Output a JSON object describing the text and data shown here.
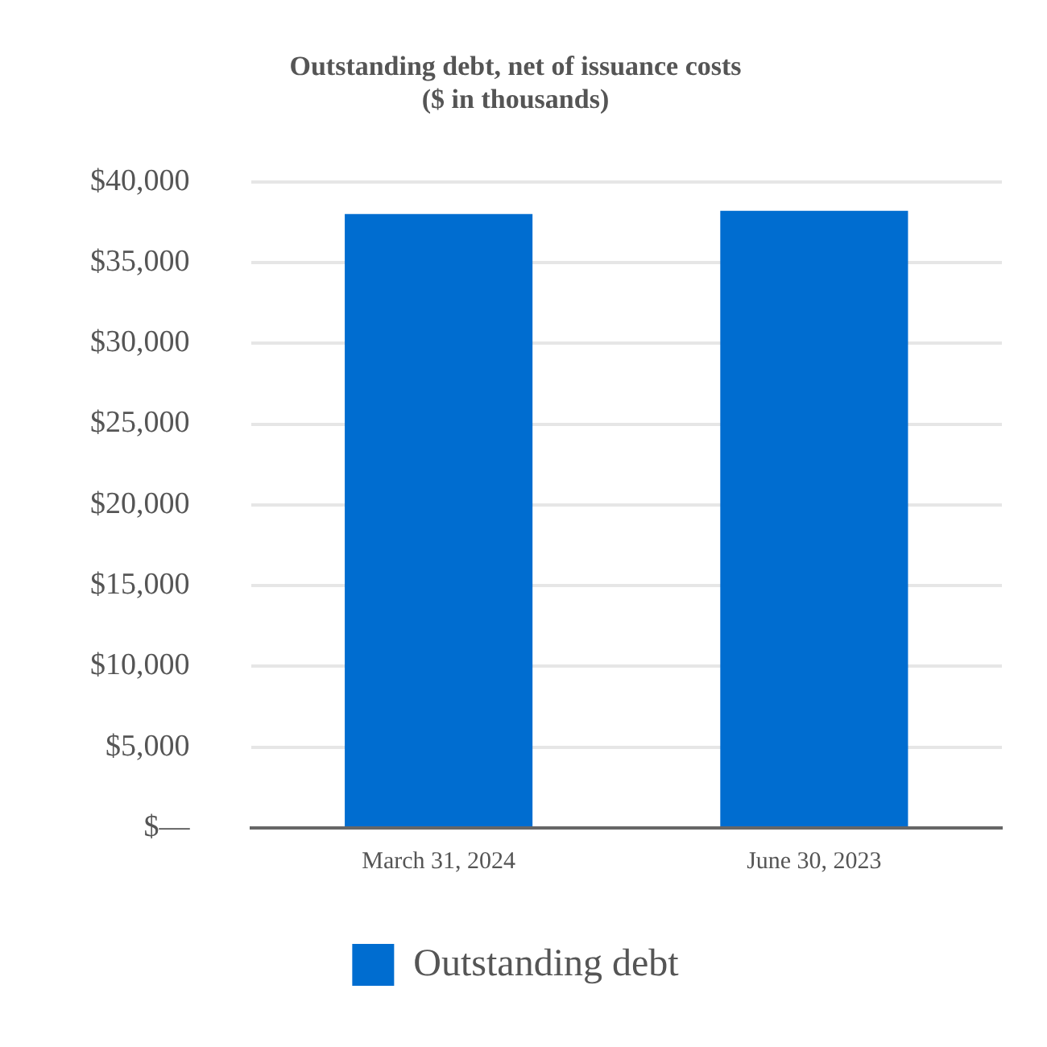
{
  "chart_data": {
    "type": "bar",
    "title": "Outstanding debt, net of issuance costs\n($ in thousands)",
    "categories": [
      "March 31, 2024",
      "June 30, 2023"
    ],
    "series": [
      {
        "name": "Outstanding debt",
        "color": "#006dd0",
        "values": [
          38000,
          38200
        ]
      }
    ],
    "ylim": [
      0,
      40000
    ],
    "yticks": [
      {
        "value": 0,
        "label": "$—"
      },
      {
        "value": 5000,
        "label": "$5,000"
      },
      {
        "value": 10000,
        "label": "$10,000"
      },
      {
        "value": 15000,
        "label": "$15,000"
      },
      {
        "value": 20000,
        "label": "$20,000"
      },
      {
        "value": 25000,
        "label": "$25,000"
      },
      {
        "value": 30000,
        "label": "$30,000"
      },
      {
        "value": 35000,
        "label": "$35,000"
      },
      {
        "value": 40000,
        "label": "$40,000"
      }
    ],
    "grid": "y",
    "legend": "bottom"
  }
}
